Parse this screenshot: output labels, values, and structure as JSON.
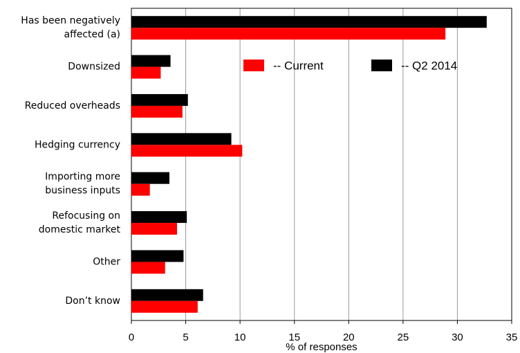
{
  "chart_data": {
    "type": "hbar",
    "x_label": "% of responses",
    "categories": [
      [
        "Has been negatively",
        "affected (a)"
      ],
      [
        "Downsized"
      ],
      [
        "Reduced overheads"
      ],
      [
        "Hedging currency"
      ],
      [
        "Importing more",
        "business inputs"
      ],
      [
        "Refocusing on",
        "domestic market"
      ],
      [
        "Other"
      ],
      [
        "Don’t know"
      ]
    ],
    "series": [
      {
        "name": "-- Current",
        "color": "#ff0000",
        "values": [
          28.9,
          2.7,
          4.7,
          10.2,
          1.7,
          4.2,
          3.1,
          6.1
        ]
      },
      {
        "name": "-- Q2 2014",
        "color": "#000000",
        "values": [
          32.7,
          3.6,
          5.2,
          9.2,
          3.5,
          5.1,
          4.8,
          6.6
        ]
      }
    ],
    "xlim": [
      0,
      35
    ],
    "xticks": [
      0,
      5,
      10,
      15,
      20,
      25,
      30,
      35
    ],
    "grid": true
  }
}
